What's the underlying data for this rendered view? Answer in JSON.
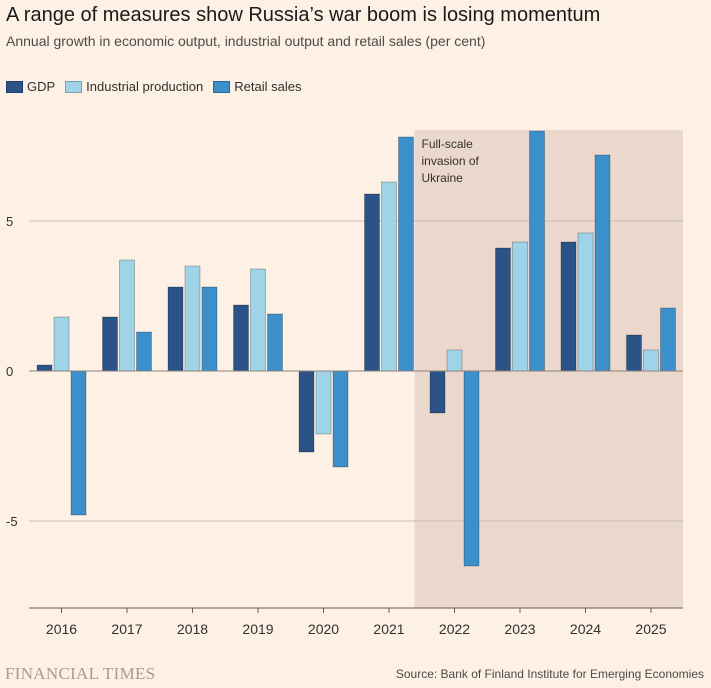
{
  "title": "A range of measures show Russia’s war boom is losing momentum",
  "subtitle": "Annual growth in economic output, industrial output and retail sales (per cent)",
  "colors": {
    "gdp": "#2b5387",
    "industrial": "#9fd4e8",
    "retail": "#3b8fcb",
    "shade": "#ead8cc",
    "grid": "#cbbdb2",
    "text": "#33302e"
  },
  "annotation": {
    "lines": [
      "Full-scale",
      "invasion of",
      "Ukraine"
    ],
    "from_year": "2022",
    "to_year": "2025"
  },
  "source": "Source: Bank of Finland Institute for Emerging Economies",
  "brand": "FINANCIAL TIMES",
  "chart_data": {
    "type": "bar",
    "title": "A range of measures show Russia’s war boom is losing momentum",
    "subtitle": "Annual growth in economic output, industrial output and retail sales (per cent)",
    "xlabel": "",
    "ylabel": "",
    "ylim": [
      -8,
      8
    ],
    "yticks": [
      5,
      0,
      -5
    ],
    "ytick_labels": [
      "5",
      "0",
      "-5"
    ],
    "grid": true,
    "legend_position": "top-left",
    "categories": [
      "2016",
      "2017",
      "2018",
      "2019",
      "2020",
      "2021",
      "2022",
      "2023",
      "2024",
      "2025"
    ],
    "series": [
      {
        "name": "GDP",
        "key": "gdp",
        "values": [
          0.2,
          1.8,
          2.8,
          2.2,
          -2.7,
          5.9,
          -1.4,
          4.1,
          4.3,
          1.2
        ]
      },
      {
        "name": "Industrial production",
        "key": "industrial",
        "values": [
          1.8,
          3.7,
          3.5,
          3.4,
          -2.1,
          6.3,
          0.7,
          4.3,
          4.6,
          0.7
        ]
      },
      {
        "name": "Retail sales",
        "key": "retail",
        "values": [
          -4.8,
          1.3,
          2.8,
          1.9,
          -3.2,
          7.8,
          -6.5,
          8.0,
          7.2,
          2.1
        ]
      }
    ]
  }
}
